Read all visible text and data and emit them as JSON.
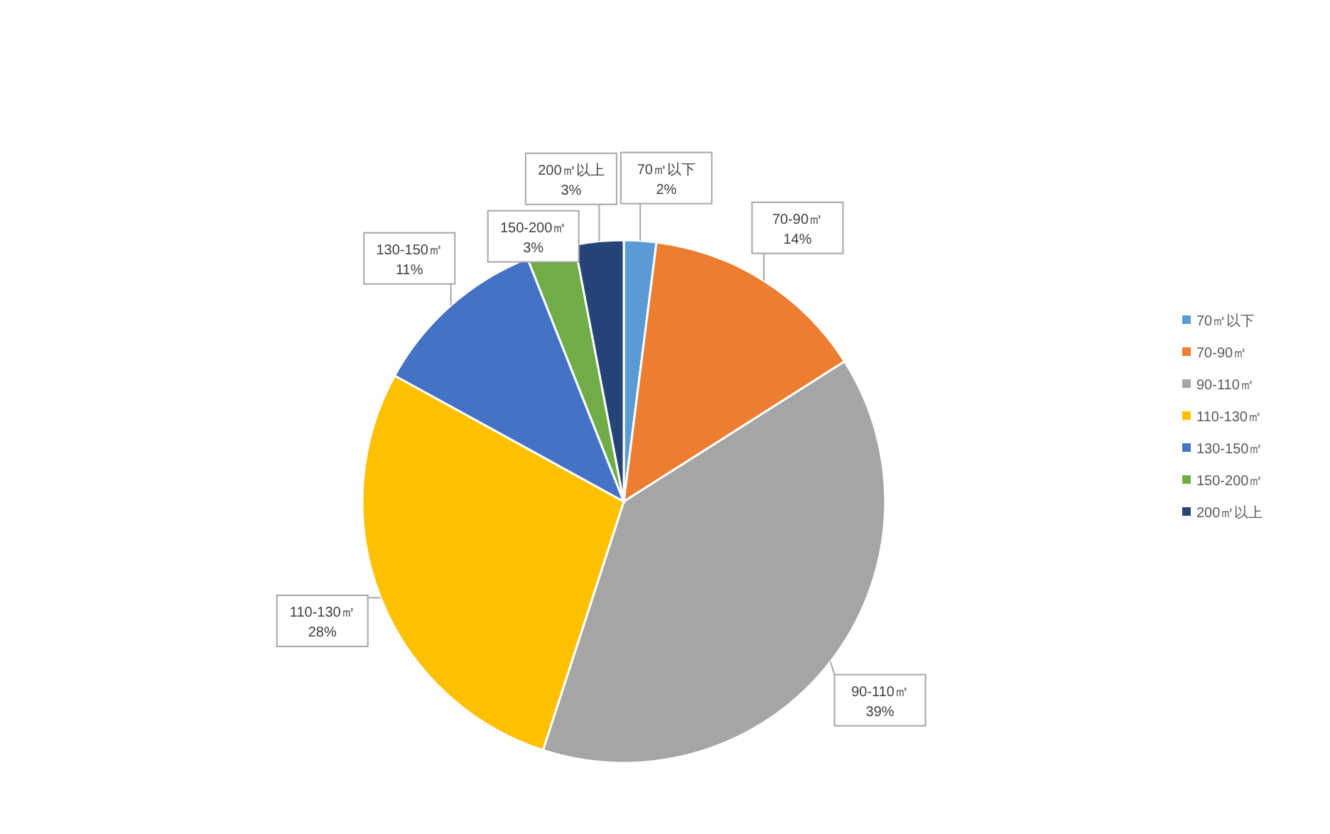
{
  "chart_data": {
    "type": "pie",
    "categories": [
      "70㎡以下",
      "70-90㎡",
      "90-110㎡",
      "110-130㎡",
      "130-150㎡",
      "150-200㎡",
      "200㎡以上"
    ],
    "values": [
      2,
      14,
      39,
      28,
      11,
      3,
      3
    ],
    "value_labels": [
      "2%",
      "14%",
      "39%",
      "28%",
      "11%",
      "3%",
      "3%"
    ],
    "colors": [
      "#5b9bd5",
      "#ed7d31",
      "#a5a5a5",
      "#ffc000",
      "#4472c4",
      "#70ad47",
      "#264478"
    ],
    "legend": "right"
  }
}
